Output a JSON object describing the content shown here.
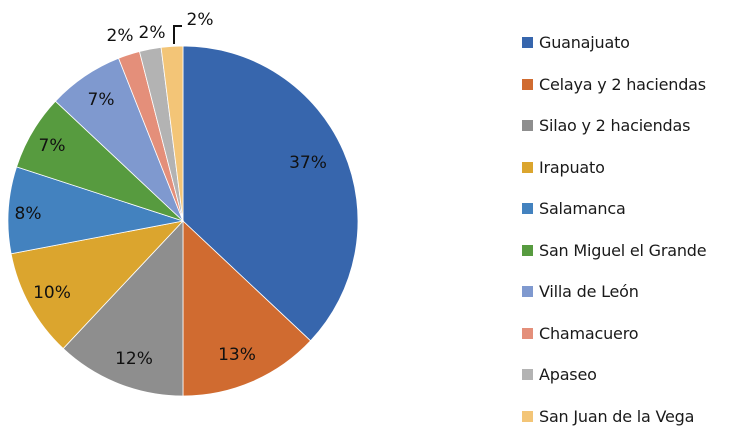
{
  "chart_data": {
    "type": "pie",
    "title": "",
    "start_angle": "12 o'clock",
    "direction": "clockwise",
    "legend_position": "right",
    "categories": [
      "Guanajuato",
      "Celaya y 2 haciendas",
      "Silao y 2 haciendas",
      "Irapuato",
      "Salamanca",
      "San Miguel el Grande",
      "Villa de León",
      "Chamacuero",
      "Apaseo",
      "San Juan de la Vega"
    ],
    "values": [
      37,
      13,
      12,
      10,
      8,
      7,
      7,
      2,
      2,
      2
    ],
    "labels": [
      "37%",
      "13%",
      "12%",
      "10%",
      "8%",
      "7%",
      "7%",
      "2%",
      "2%",
      "2%"
    ],
    "colors": [
      "#3766ad",
      "#d06b30",
      "#8e8e8e",
      "#dba52e",
      "#4382bf",
      "#579b3f",
      "#7f99cf",
      "#e48f7a",
      "#b3b3b3",
      "#f3c577"
    ],
    "units": "%"
  },
  "legend": {
    "items": [
      {
        "label": "Guanajuato",
        "color": "#3766ad"
      },
      {
        "label": "Celaya y 2 haciendas",
        "color": "#d06b30"
      },
      {
        "label": "Silao y 2 haciendas",
        "color": "#8e8e8e"
      },
      {
        "label": "Irapuato",
        "color": "#dba52e"
      },
      {
        "label": "Salamanca",
        "color": "#4382bf"
      },
      {
        "label": "San Miguel el Grande",
        "color": "#579b3f"
      },
      {
        "label": "Villa de León",
        "color": "#7f99cf"
      },
      {
        "label": "Chamacuero",
        "color": "#e48f7a"
      },
      {
        "label": "Apaseo",
        "color": "#b3b3b3"
      },
      {
        "label": "San Juan de la Vega",
        "color": "#f3c577"
      }
    ]
  }
}
